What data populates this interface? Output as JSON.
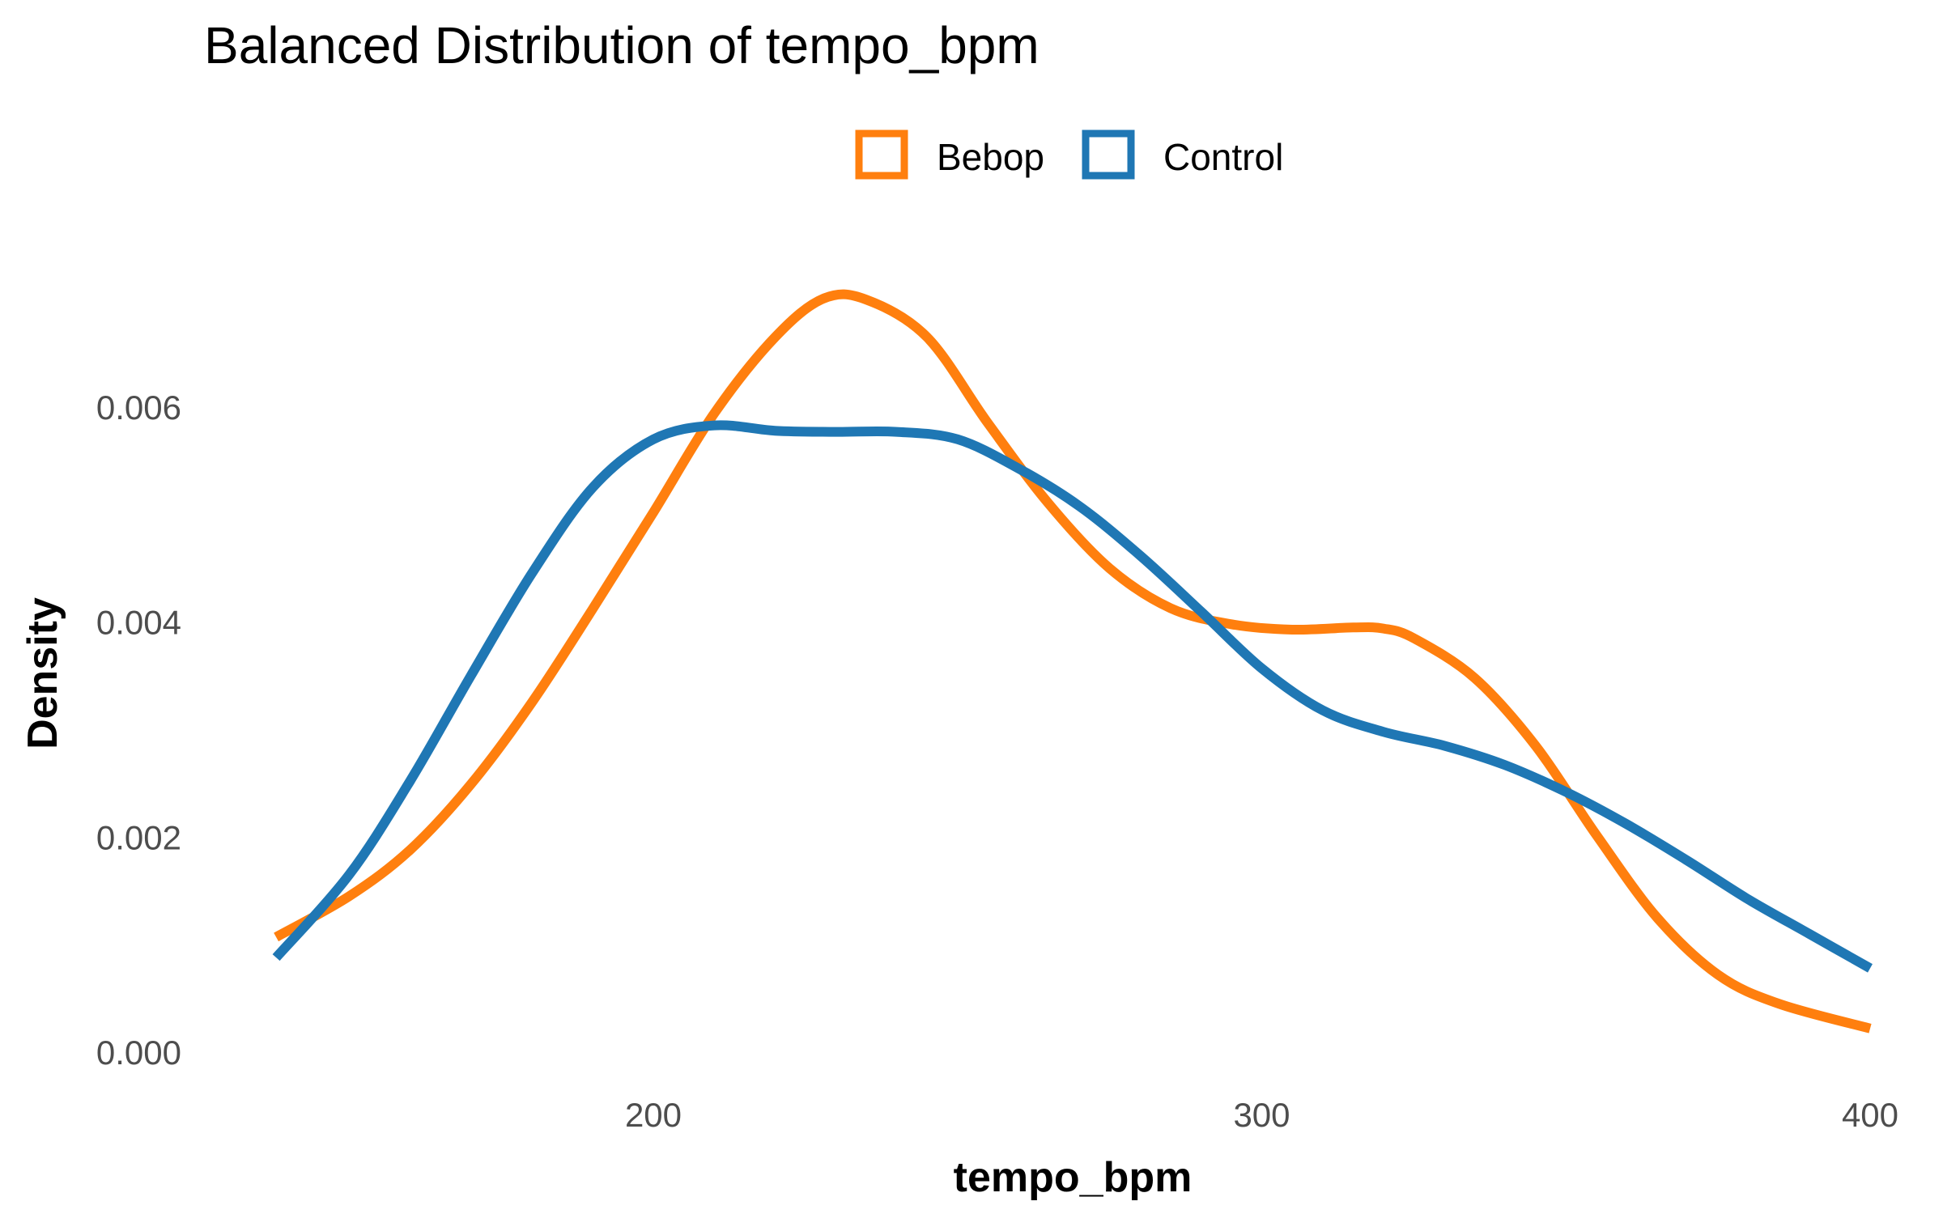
{
  "chart_data": {
    "type": "line",
    "title": "Balanced Distribution of tempo_bpm",
    "xlabel": "tempo_bpm",
    "ylabel": "Density",
    "xlim": [
      138,
      400
    ],
    "ylim": [
      0,
      0.0072
    ],
    "x_ticks": [
      200,
      300,
      400
    ],
    "x_tick_labels": [
      "200",
      "300",
      "400"
    ],
    "y_ticks": [
      0,
      0.002,
      0.004,
      0.006
    ],
    "y_tick_labels": [
      "0.000",
      "0.002",
      "0.004",
      "0.006"
    ],
    "grid": false,
    "legend_position": "top",
    "series": [
      {
        "name": "Bebop",
        "color": "#ff7f0e",
        "x": [
          138,
          150,
          160,
          170,
          180,
          190,
          200,
          210,
          220,
          228,
          235,
          245,
          255,
          265,
          275,
          285,
          295,
          305,
          315,
          320,
          325,
          335,
          345,
          355,
          365,
          375,
          385,
          400
        ],
        "y": [
          0.00107,
          0.00145,
          0.00188,
          0.00249,
          0.00325,
          0.00412,
          0.00502,
          0.00594,
          0.00665,
          0.00701,
          0.007,
          0.00665,
          0.00585,
          0.0051,
          0.0045,
          0.00413,
          0.00398,
          0.00393,
          0.00395,
          0.00394,
          0.00385,
          0.00348,
          0.00285,
          0.00202,
          0.00125,
          0.00072,
          0.00045,
          0.00022
        ]
      },
      {
        "name": "Control",
        "color": "#1f77b4",
        "x": [
          138,
          150,
          160,
          170,
          180,
          190,
          200,
          210,
          220,
          230,
          240,
          250,
          260,
          270,
          280,
          290,
          300,
          310,
          320,
          330,
          340,
          350,
          360,
          370,
          380,
          390,
          400
        ],
        "y": [
          0.00088,
          0.00165,
          0.00252,
          0.0035,
          0.00445,
          0.00525,
          0.0057,
          0.00583,
          0.00578,
          0.00577,
          0.00577,
          0.0057,
          0.00543,
          0.00508,
          0.00462,
          0.0041,
          0.00357,
          0.00318,
          0.00298,
          0.00285,
          0.00267,
          0.00242,
          0.00212,
          0.00178,
          0.00142,
          0.0011,
          0.00078
        ]
      }
    ]
  }
}
